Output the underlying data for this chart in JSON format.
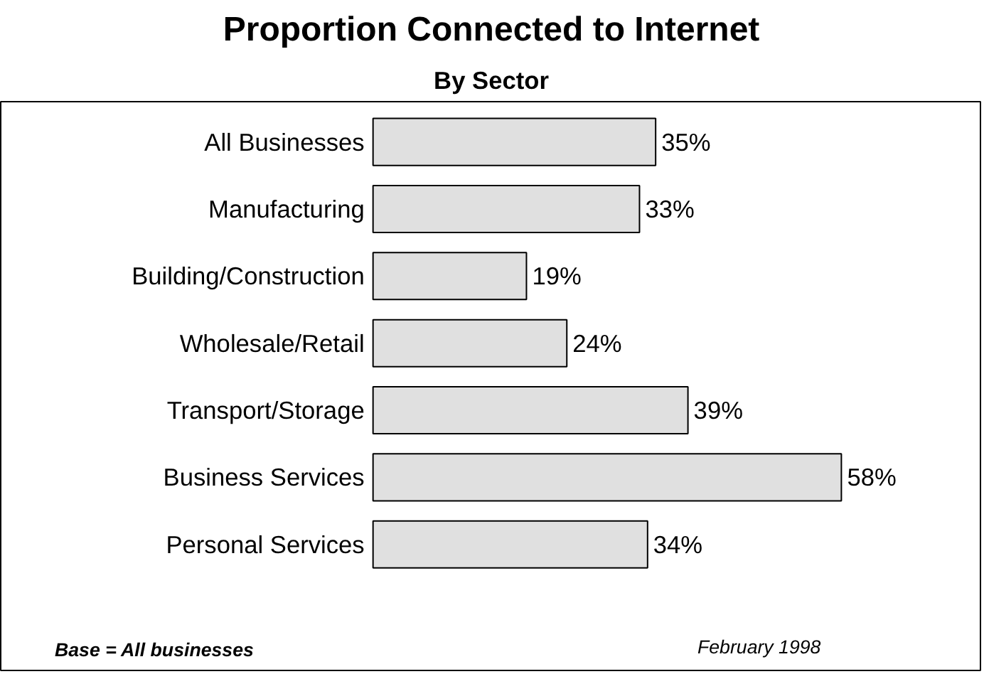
{
  "chart_data": {
    "type": "bar",
    "orientation": "horizontal",
    "title": "Proportion Connected to Internet",
    "subtitle": "By Sector",
    "categories": [
      "All Businesses",
      "Manufacturing",
      "Building/Construction",
      "Wholesale/Retail",
      "Transport/Storage",
      "Business Services",
      "Personal Services"
    ],
    "values": [
      35,
      33,
      19,
      24,
      39,
      58,
      34
    ],
    "value_labels": [
      "35%",
      "33%",
      "19%",
      "24%",
      "39%",
      "58%",
      "34%"
    ],
    "color": "#e0e0e0",
    "annotations": [
      "Base = All businesses",
      "February 1998"
    ]
  }
}
